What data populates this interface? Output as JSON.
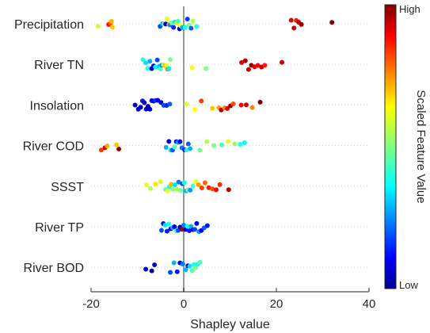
{
  "chart_data": {
    "type": "scatter",
    "subtype": "shap-beeswarm",
    "xlabel": "Shapley value",
    "xlim": [
      -20,
      40
    ],
    "xticks": [
      -20,
      0,
      20,
      40
    ],
    "xtick_labels": [
      "-20",
      "0",
      "20",
      "40"
    ],
    "grid": "horizontal dotted lines at each feature row",
    "zero_line": true,
    "colormap": "jet",
    "colorbar": {
      "title": "Scaled Feature Value",
      "high_label": "High",
      "low_label": "Low",
      "placement": "right"
    },
    "categories": [
      "Precipitation",
      "River TN",
      "Insolation",
      "River COD",
      "SSST",
      "River TP",
      "River BOD"
    ],
    "series": [
      {
        "name": "Precipitation",
        "points": [
          {
            "x": -18.5,
            "c": 0.58
          },
          {
            "x": -16.2,
            "c": 0.88
          },
          {
            "x": -15.8,
            "c": 0.8
          },
          {
            "x": -15.6,
            "c": 0.7
          },
          {
            "x": -15.4,
            "c": 0.68
          },
          {
            "x": -5.1,
            "c": 0.2
          },
          {
            "x": -4.6,
            "c": 0.3
          },
          {
            "x": -4.2,
            "c": 0.55
          },
          {
            "x": -3.9,
            "c": 0.1
          },
          {
            "x": -3.6,
            "c": 0.6
          },
          {
            "x": -3.2,
            "c": 0.72
          },
          {
            "x": -2.9,
            "c": 0.25
          },
          {
            "x": -2.6,
            "c": 0.5
          },
          {
            "x": -2.2,
            "c": 0.16
          },
          {
            "x": -1.9,
            "c": 0.35
          },
          {
            "x": -1.5,
            "c": 0.65
          },
          {
            "x": -1.2,
            "c": 0.45
          },
          {
            "x": -0.9,
            "c": 0.08
          },
          {
            "x": -0.6,
            "c": 0.62
          },
          {
            "x": -0.3,
            "c": 0.3
          },
          {
            "x": 0.3,
            "c": 0.4
          },
          {
            "x": 0.8,
            "c": 0.18
          },
          {
            "x": 1.2,
            "c": 0.5
          },
          {
            "x": 1.6,
            "c": 0.22
          },
          {
            "x": 2.0,
            "c": 0.55
          },
          {
            "x": 2.8,
            "c": 0.4
          },
          {
            "x": 23.2,
            "c": 0.9
          },
          {
            "x": 23.8,
            "c": 0.92
          },
          {
            "x": 24.3,
            "c": 0.85
          },
          {
            "x": 24.8,
            "c": 0.95
          },
          {
            "x": 25.4,
            "c": 0.98
          },
          {
            "x": 32.0,
            "c": 1.0
          }
        ]
      },
      {
        "name": "River TN",
        "points": [
          {
            "x": -8.8,
            "c": 0.42
          },
          {
            "x": -8.2,
            "c": 0.35
          },
          {
            "x": -7.7,
            "c": 0.4
          },
          {
            "x": -7.3,
            "c": 0.3
          },
          {
            "x": -6.9,
            "c": 0.05
          },
          {
            "x": -6.5,
            "c": 0.12
          },
          {
            "x": -6.1,
            "c": 0.38
          },
          {
            "x": -5.7,
            "c": 0.2
          },
          {
            "x": -5.3,
            "c": 0.33
          },
          {
            "x": -5.0,
            "c": 0.45
          },
          {
            "x": -4.7,
            "c": 0.25
          },
          {
            "x": -4.4,
            "c": 0.55
          },
          {
            "x": -4.0,
            "c": 0.7
          },
          {
            "x": -3.7,
            "c": 0.6
          },
          {
            "x": -3.5,
            "c": 0.75
          },
          {
            "x": -3.2,
            "c": 0.36
          },
          {
            "x": -2.9,
            "c": 0.5
          },
          {
            "x": 1.8,
            "c": 0.62
          },
          {
            "x": 4.8,
            "c": 0.5
          },
          {
            "x": 12.5,
            "c": 0.9
          },
          {
            "x": 13.3,
            "c": 0.95
          },
          {
            "x": 14.0,
            "c": 0.92
          },
          {
            "x": 14.6,
            "c": 0.97
          },
          {
            "x": 15.3,
            "c": 0.9
          },
          {
            "x": 16.0,
            "c": 0.88
          },
          {
            "x": 16.8,
            "c": 0.93
          },
          {
            "x": 17.5,
            "c": 0.85
          },
          {
            "x": 21.2,
            "c": 0.92
          }
        ]
      },
      {
        "name": "Insolation",
        "points": [
          {
            "x": -10.5,
            "c": 0.05
          },
          {
            "x": -9.8,
            "c": 0.1
          },
          {
            "x": -9.3,
            "c": 0.08
          },
          {
            "x": -8.9,
            "c": 0.15
          },
          {
            "x": -8.5,
            "c": 0.06
          },
          {
            "x": -8.1,
            "c": 0.12
          },
          {
            "x": -7.7,
            "c": 0.04
          },
          {
            "x": -7.3,
            "c": 0.1
          },
          {
            "x": -6.9,
            "c": 0.14
          },
          {
            "x": -6.5,
            "c": 0.07
          },
          {
            "x": -6.1,
            "c": 0.18
          },
          {
            "x": -5.6,
            "c": 0.12
          },
          {
            "x": -4.9,
            "c": 0.09
          },
          {
            "x": -4.3,
            "c": 0.2
          },
          {
            "x": -3.7,
            "c": 0.15
          },
          {
            "x": -3.0,
            "c": 0.22
          },
          {
            "x": 0.6,
            "c": 0.6
          },
          {
            "x": 2.4,
            "c": 0.62
          },
          {
            "x": 3.8,
            "c": 0.82
          },
          {
            "x": 6.2,
            "c": 0.68
          },
          {
            "x": 7.6,
            "c": 0.72
          },
          {
            "x": 8.1,
            "c": 0.95
          },
          {
            "x": 8.8,
            "c": 0.74
          },
          {
            "x": 9.4,
            "c": 0.9
          },
          {
            "x": 10.1,
            "c": 0.97
          },
          {
            "x": 10.7,
            "c": 0.8
          },
          {
            "x": 12.4,
            "c": 0.88
          },
          {
            "x": 13.5,
            "c": 0.92
          },
          {
            "x": 14.8,
            "c": 0.75
          },
          {
            "x": 16.5,
            "c": 1.0
          }
        ]
      },
      {
        "name": "River COD",
        "points": [
          {
            "x": -17.8,
            "c": 0.82
          },
          {
            "x": -17.0,
            "c": 0.9
          },
          {
            "x": -16.5,
            "c": 0.7
          },
          {
            "x": -14.5,
            "c": 0.68
          },
          {
            "x": -14.0,
            "c": 0.98
          },
          {
            "x": -3.8,
            "c": 0.3
          },
          {
            "x": -3.2,
            "c": 0.1
          },
          {
            "x": -2.8,
            "c": 0.35
          },
          {
            "x": -2.4,
            "c": 0.2
          },
          {
            "x": -2.0,
            "c": 0.45
          },
          {
            "x": -1.6,
            "c": 0.15
          },
          {
            "x": -1.2,
            "c": 0.3
          },
          {
            "x": -0.8,
            "c": 0.08
          },
          {
            "x": -0.4,
            "c": 0.25
          },
          {
            "x": 0.2,
            "c": 0.12
          },
          {
            "x": 0.6,
            "c": 0.4
          },
          {
            "x": 1.0,
            "c": 0.22
          },
          {
            "x": 1.4,
            "c": 0.3
          },
          {
            "x": 3.5,
            "c": 0.48
          },
          {
            "x": 5.0,
            "c": 0.55
          },
          {
            "x": 6.5,
            "c": 0.5
          },
          {
            "x": 8.2,
            "c": 0.45
          },
          {
            "x": 9.6,
            "c": 0.6
          },
          {
            "x": 11.0,
            "c": 0.52
          },
          {
            "x": 12.2,
            "c": 0.4
          },
          {
            "x": 13.1,
            "c": 0.38
          }
        ]
      },
      {
        "name": "SSST",
        "points": [
          {
            "x": -8.0,
            "c": 0.6
          },
          {
            "x": -7.2,
            "c": 0.55
          },
          {
            "x": -6.1,
            "c": 0.65
          },
          {
            "x": -5.0,
            "c": 0.58
          },
          {
            "x": -3.9,
            "c": 0.45
          },
          {
            "x": -3.5,
            "c": 0.62
          },
          {
            "x": -3.1,
            "c": 0.4
          },
          {
            "x": -2.7,
            "c": 0.7
          },
          {
            "x": -2.3,
            "c": 0.5
          },
          {
            "x": -1.9,
            "c": 0.35
          },
          {
            "x": -1.5,
            "c": 0.55
          },
          {
            "x": -1.1,
            "c": 0.25
          },
          {
            "x": -0.7,
            "c": 0.48
          },
          {
            "x": -0.3,
            "c": 0.2
          },
          {
            "x": 0.1,
            "c": 0.4
          },
          {
            "x": 0.5,
            "c": 0.3
          },
          {
            "x": 0.9,
            "c": 0.5
          },
          {
            "x": 1.4,
            "c": 0.28
          },
          {
            "x": 2.0,
            "c": 0.45
          },
          {
            "x": 2.6,
            "c": 0.6
          },
          {
            "x": 3.2,
            "c": 0.72
          },
          {
            "x": 3.9,
            "c": 0.82
          },
          {
            "x": 4.6,
            "c": 0.78
          },
          {
            "x": 5.4,
            "c": 0.85
          },
          {
            "x": 6.2,
            "c": 0.8
          },
          {
            "x": 7.0,
            "c": 0.88
          },
          {
            "x": 7.8,
            "c": 0.84
          },
          {
            "x": 9.7,
            "c": 0.95
          }
        ]
      },
      {
        "name": "River TP",
        "points": [
          {
            "x": -4.8,
            "c": 0.2
          },
          {
            "x": -4.4,
            "c": 0.1
          },
          {
            "x": -4.0,
            "c": 0.35
          },
          {
            "x": -3.6,
            "c": 0.15
          },
          {
            "x": -3.2,
            "c": 0.4
          },
          {
            "x": -2.8,
            "c": 0.08
          },
          {
            "x": -2.4,
            "c": 0.3
          },
          {
            "x": -2.0,
            "c": 0.12
          },
          {
            "x": -1.6,
            "c": 0.45
          },
          {
            "x": -1.2,
            "c": 0.2
          },
          {
            "x": -0.8,
            "c": 0.05
          },
          {
            "x": -0.4,
            "c": 0.95
          },
          {
            "x": 0.0,
            "c": 0.25
          },
          {
            "x": 0.4,
            "c": 0.1
          },
          {
            "x": 0.8,
            "c": 0.4
          },
          {
            "x": 1.2,
            "c": 0.15
          },
          {
            "x": 1.6,
            "c": 0.3
          },
          {
            "x": 2.0,
            "c": 0.08
          },
          {
            "x": 2.4,
            "c": 0.2
          },
          {
            "x": 2.8,
            "c": 0.12
          },
          {
            "x": 3.3,
            "c": 0.28
          },
          {
            "x": 3.8,
            "c": 0.1
          },
          {
            "x": 4.4,
            "c": 0.22
          },
          {
            "x": 5.1,
            "c": 0.15
          }
        ]
      },
      {
        "name": "River BOD",
        "points": [
          {
            "x": -8.2,
            "c": 0.1
          },
          {
            "x": -6.9,
            "c": 0.05
          },
          {
            "x": -6.3,
            "c": 0.08
          },
          {
            "x": -2.9,
            "c": 0.2
          },
          {
            "x": -2.1,
            "c": 0.3
          },
          {
            "x": -1.4,
            "c": 0.15
          },
          {
            "x": -0.8,
            "c": 0.1
          },
          {
            "x": -0.2,
            "c": 0.25
          },
          {
            "x": 0.4,
            "c": 0.3
          },
          {
            "x": 0.9,
            "c": 0.12
          },
          {
            "x": 1.3,
            "c": 0.35
          },
          {
            "x": 1.8,
            "c": 0.45
          },
          {
            "x": 2.2,
            "c": 0.4
          },
          {
            "x": 2.6,
            "c": 0.5
          },
          {
            "x": 3.0,
            "c": 0.38
          },
          {
            "x": 3.5,
            "c": 0.45
          }
        ]
      }
    ]
  }
}
